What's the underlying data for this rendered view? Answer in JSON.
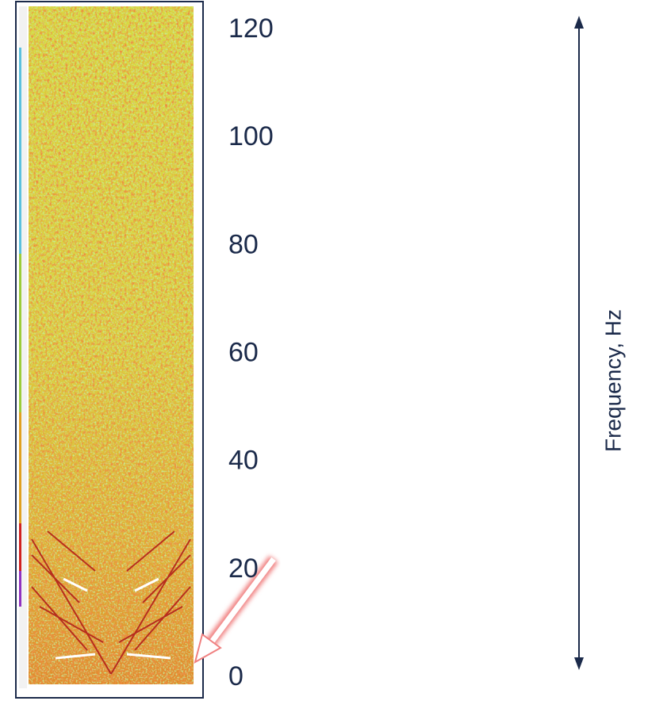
{
  "chart_data": {
    "type": "spectrogram",
    "y_label": "Frequency, Hz",
    "ylim": [
      0,
      120
    ],
    "yticks": [
      0,
      20,
      40,
      60,
      80,
      100,
      120
    ],
    "color": "#1b2a4a"
  }
}
